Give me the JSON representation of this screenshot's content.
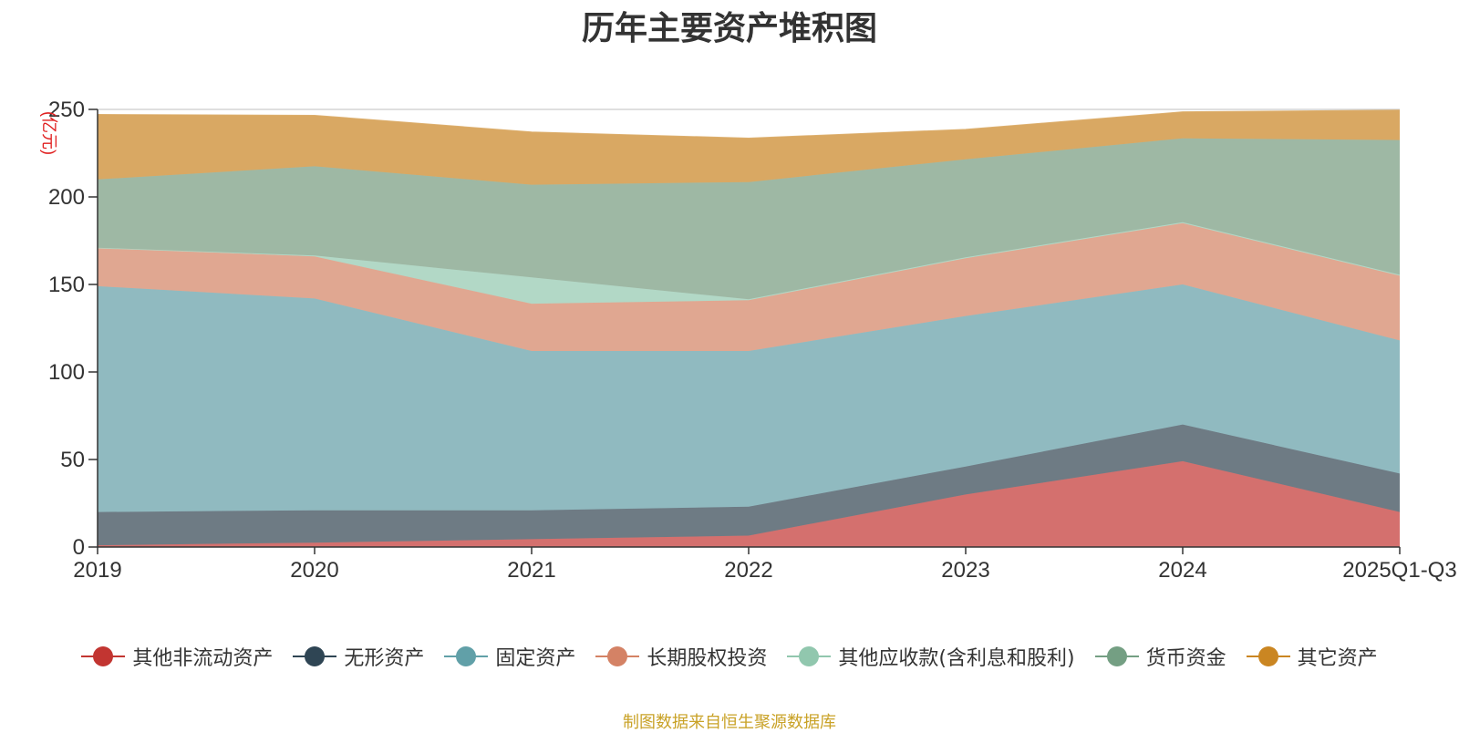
{
  "chart_data": {
    "type": "area",
    "stacked": true,
    "title": "历年主要资产堆积图",
    "unit_label": "(亿元)",
    "categories": [
      "2019",
      "2020",
      "2021",
      "2022",
      "2023",
      "2024",
      "2025Q1-Q3"
    ],
    "ylim": [
      0,
      250
    ],
    "yticks": [
      0,
      50,
      100,
      150,
      200,
      250
    ],
    "grid": true,
    "legend_position": "bottom",
    "series": [
      {
        "name": "其他非流动资产",
        "values": [
          1,
          2.5,
          4.5,
          6.5,
          30,
          49,
          20
        ],
        "color": "#c23531",
        "fill": "#d4706e"
      },
      {
        "name": "无形资产",
        "values": [
          19,
          18.5,
          16.5,
          16.5,
          16,
          21,
          22
        ],
        "color": "#2f4554",
        "fill": "#6e7b84"
      },
      {
        "name": "固定资产",
        "values": [
          129,
          121,
          91,
          89,
          86,
          80,
          76
        ],
        "color": "#61a0a8",
        "fill": "#90bac0"
      },
      {
        "name": "长期股权投资",
        "values": [
          22,
          24,
          27,
          29,
          33,
          35,
          37
        ],
        "color": "#d48265",
        "fill": "#e0a791"
      },
      {
        "name": "其他应收款(含利息和股利)",
        "values": [
          0,
          0.5,
          15,
          0.5,
          0.5,
          0.5,
          0.5
        ],
        "color": "#91c7ae",
        "fill": "#b2d8c6"
      },
      {
        "name": "货币资金",
        "values": [
          39,
          51,
          53,
          67,
          56,
          48,
          77
        ],
        "color": "#749f83",
        "fill": "#9eb8a4"
      },
      {
        "name": "其它资产",
        "values": [
          37,
          29,
          30,
          25,
          17,
          15,
          17
        ],
        "color": "#ca8622",
        "fill": "#d9a863"
      }
    ]
  },
  "source_note": "制图数据来自恒生聚源数据库"
}
